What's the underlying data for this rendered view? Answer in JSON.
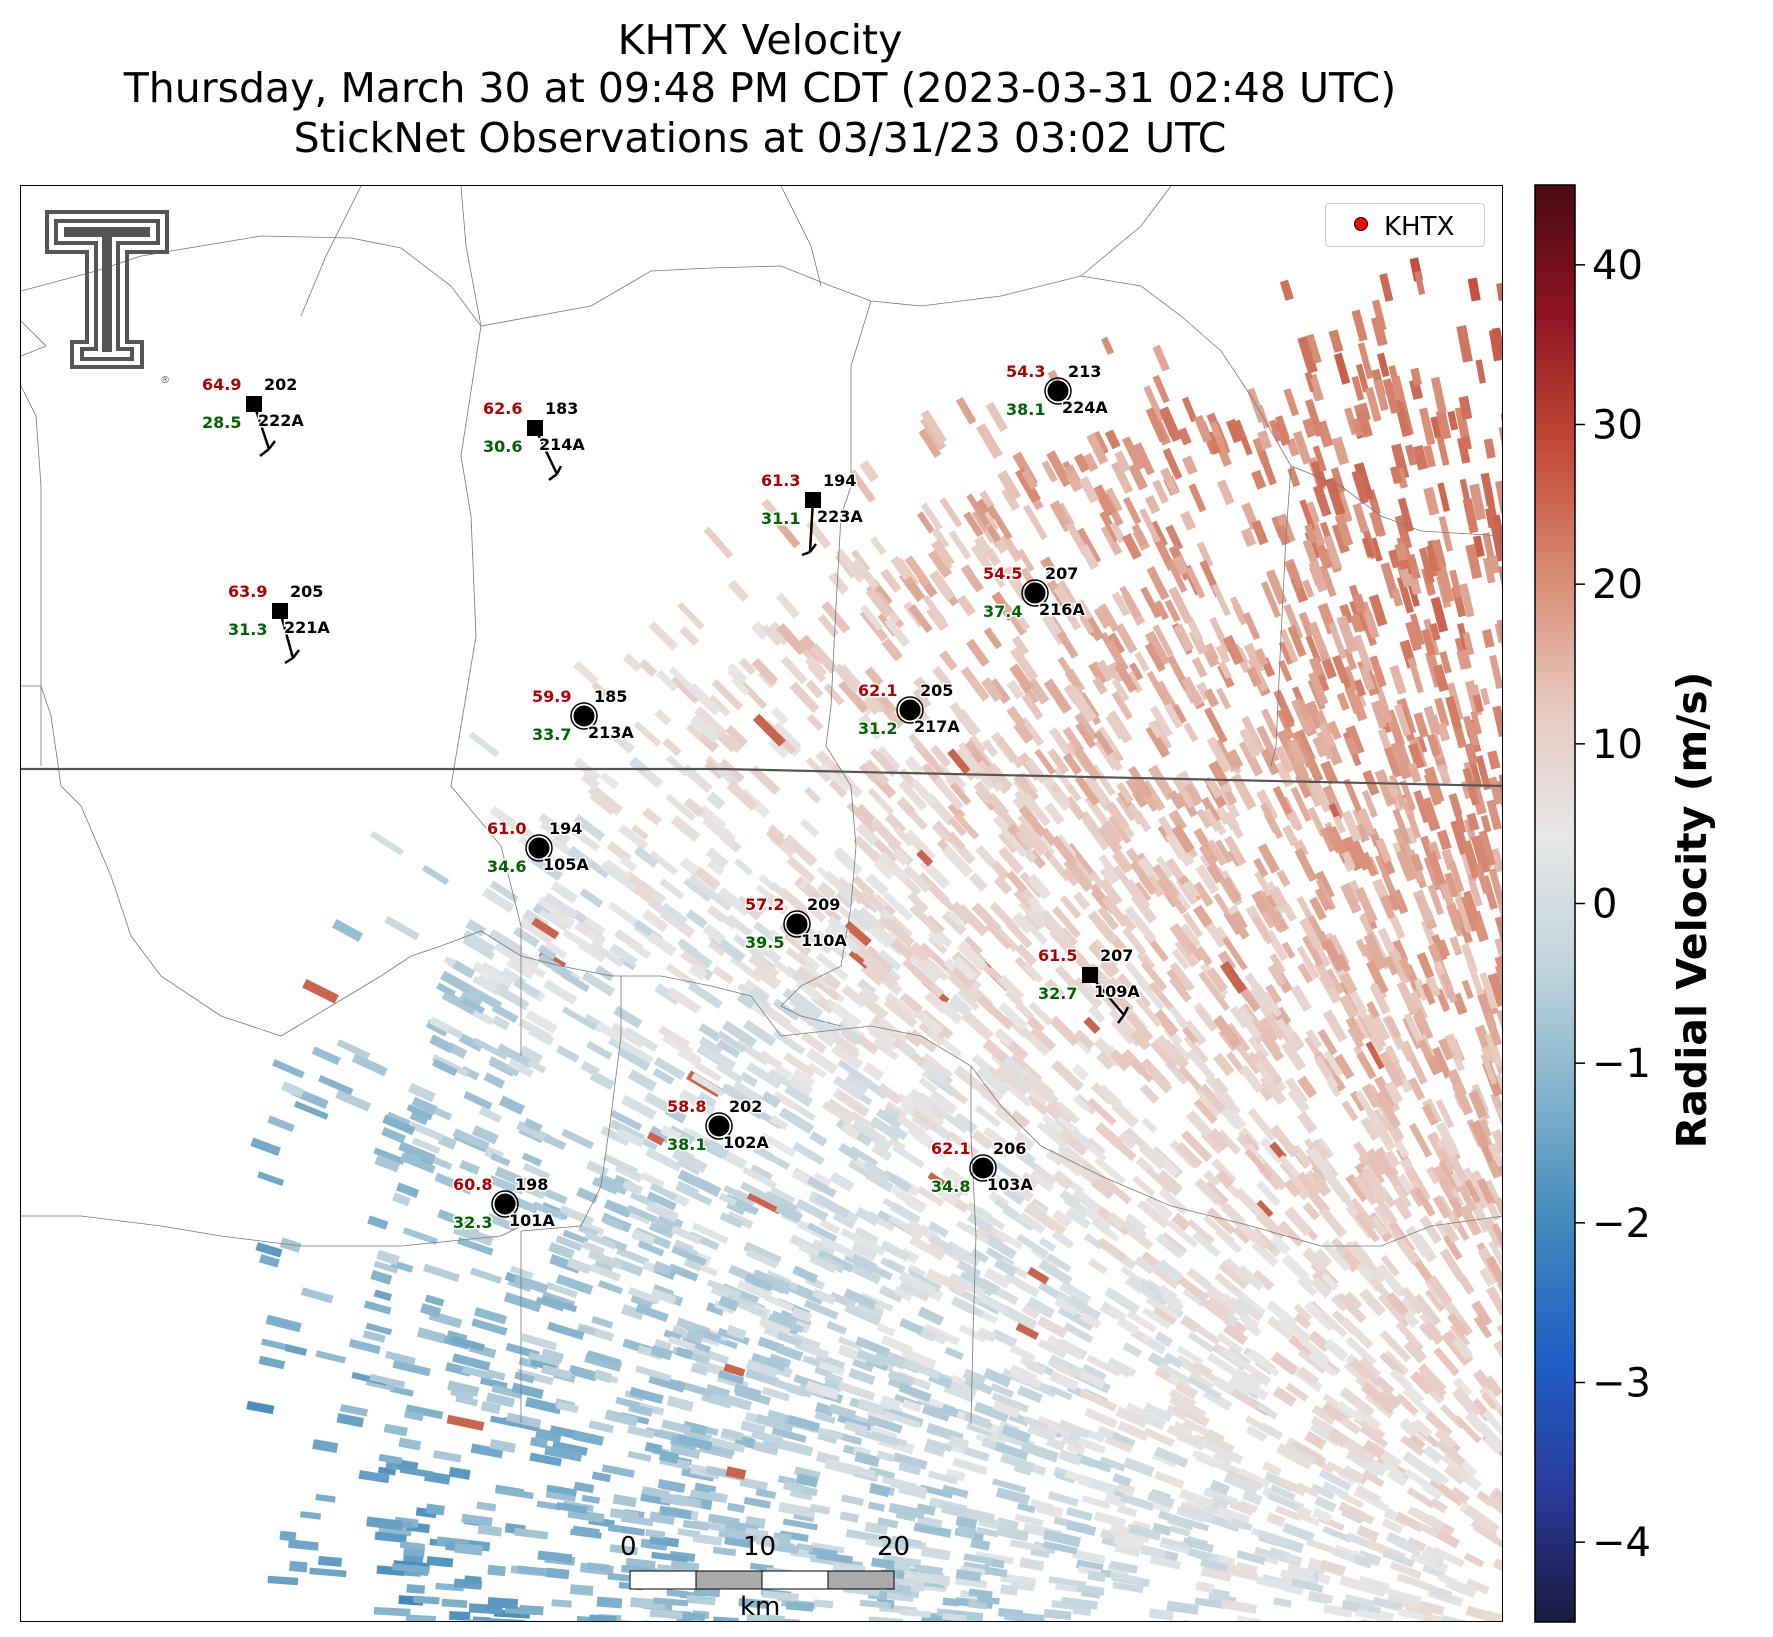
{
  "title": {
    "line1": "KHTX Velocity",
    "line2": "Thursday, March 30 at 09:48 PM CDT (2023-03-31 02:48 UTC)",
    "line3": "StickNet Observations at 03/31/23 03:02 UTC"
  },
  "legend": {
    "label": "KHTX",
    "marker_color": "#ff0000"
  },
  "logo": {
    "icon": "texas-tech-double-t-logo",
    "color": "#555555"
  },
  "colorbar": {
    "label": "Radial Velocity (m/s)",
    "min": -45,
    "max": 45,
    "ticks": [
      "40",
      "30",
      "20",
      "10",
      "0",
      "−10",
      "−20",
      "−30",
      "−40"
    ],
    "tick_values": [
      40,
      30,
      20,
      10,
      0,
      -10,
      -20,
      -30,
      -40
    ],
    "colors": [
      "#1a1a40",
      "#2a3a9a",
      "#1f5fc6",
      "#3f86bb",
      "#7fb1cc",
      "#bfd3dc",
      "#e8e8e8",
      "#e7c9bf",
      "#d88c75",
      "#c24a36",
      "#8f1424",
      "#4a0b12"
    ]
  },
  "scale_bar": {
    "ticks": [
      "0",
      "10",
      "20"
    ],
    "unit": "km"
  },
  "stations": [
    {
      "id": "202",
      "name": "222A",
      "temp": "64.9",
      "dew": "28.5",
      "marker": "square"
    },
    {
      "id": "183",
      "name": "214A",
      "temp": "62.6",
      "dew": "30.6",
      "marker": "square"
    },
    {
      "id": "194",
      "name": "223A",
      "temp": "61.3",
      "dew": "31.1",
      "marker": "square"
    },
    {
      "id": "213",
      "name": "224A",
      "temp": "54.3",
      "dew": "38.1",
      "marker": "circle"
    },
    {
      "id": "205",
      "name": "221A",
      "temp": "63.9",
      "dew": "31.3",
      "marker": "square"
    },
    {
      "id": "207",
      "name": "216A",
      "temp": "54.5",
      "dew": "37.4",
      "marker": "circle"
    },
    {
      "id": "185",
      "name": "213A",
      "temp": "59.9",
      "dew": "33.7",
      "marker": "circle"
    },
    {
      "id": "205",
      "name": "217A",
      "temp": "62.1",
      "dew": "31.2",
      "marker": "circle"
    },
    {
      "id": "194",
      "name": "105A",
      "temp": "61.0",
      "dew": "34.6",
      "marker": "circle"
    },
    {
      "id": "209",
      "name": "110A",
      "temp": "57.2",
      "dew": "39.5",
      "marker": "circle"
    },
    {
      "id": "207",
      "name": "109A",
      "temp": "61.5",
      "dew": "32.7",
      "marker": "square"
    },
    {
      "id": "202",
      "name": "102A",
      "temp": "58.8",
      "dew": "38.1",
      "marker": "circle"
    },
    {
      "id": "206",
      "name": "103A",
      "temp": "62.1",
      "dew": "34.8",
      "marker": "circle"
    },
    {
      "id": "198",
      "name": "101A",
      "temp": "60.8",
      "dew": "32.3",
      "marker": "circle"
    }
  ],
  "text_colors": {
    "temp": "#b00000",
    "dew": "#006400",
    "id": "#000000"
  }
}
